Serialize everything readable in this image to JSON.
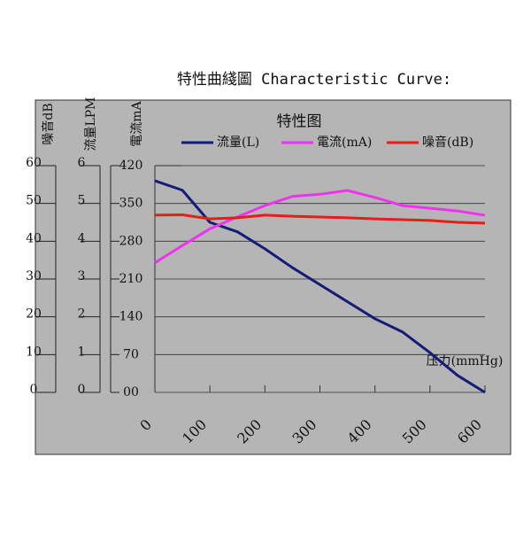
{
  "chart_data": {
    "type": "line",
    "page_title": "特性曲綫圖 Characteristic Curve:",
    "title": "特性图",
    "x_label": "压力(mmHg)",
    "x": [
      0,
      50,
      100,
      150,
      200,
      250,
      300,
      350,
      400,
      450,
      500,
      550,
      600
    ],
    "xlim": [
      0,
      600
    ],
    "xticks": [
      0,
      100,
      200,
      300,
      400,
      500,
      600
    ],
    "y_axes": [
      {
        "label": "噪音dB",
        "lim": [
          0,
          60
        ],
        "ticks": [
          0,
          10,
          20,
          30,
          40,
          50,
          60
        ]
      },
      {
        "label": "流量LPM",
        "lim": [
          0,
          6
        ],
        "ticks": [
          0,
          1,
          2,
          3,
          4,
          5,
          6
        ]
      },
      {
        "label": "電流mA",
        "lim": [
          0,
          420
        ],
        "ticks": [
          {
            "value": 0,
            "label": "00"
          },
          70,
          140,
          210,
          280,
          350,
          420
        ]
      }
    ],
    "grid": true,
    "series": [
      {
        "name": "流量(L)",
        "color": "#141c78",
        "axis": 1,
        "values": [
          5.6,
          5.35,
          4.5,
          4.25,
          3.8,
          3.3,
          2.85,
          2.4,
          1.95,
          1.6,
          1.05,
          0.45,
          0
        ]
      },
      {
        "name": "電流(mA)",
        "color": "#ee33ee",
        "axis": 2,
        "values": [
          240,
          272,
          303,
          325,
          346,
          363,
          367,
          374,
          361,
          346,
          341,
          336,
          328
        ]
      },
      {
        "name": "噪音(dB)",
        "color": "#e0201a",
        "axis": 0,
        "values": [
          46.9,
          47,
          45.9,
          46.2,
          46.9,
          46.6,
          46.4,
          46.2,
          45.9,
          45.7,
          45.5,
          45,
          44.8
        ]
      }
    ]
  }
}
